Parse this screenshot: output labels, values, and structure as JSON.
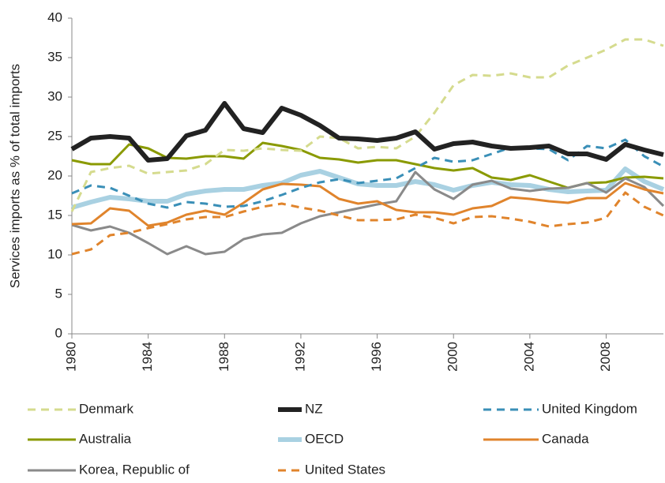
{
  "chart_data": {
    "type": "line",
    "y_label": "Services imports as % of total imports",
    "x": [
      1980,
      1981,
      1982,
      1983,
      1984,
      1985,
      1986,
      1987,
      1988,
      1989,
      1990,
      1991,
      1992,
      1993,
      1994,
      1995,
      1996,
      1997,
      1998,
      1999,
      2000,
      2001,
      2002,
      2003,
      2004,
      2005,
      2006,
      2007,
      2008,
      2009,
      2010,
      2011
    ],
    "xlim": [
      1980,
      2011
    ],
    "xticks": [
      1980,
      1984,
      1988,
      1992,
      1996,
      2000,
      2004,
      2008
    ],
    "ylim": [
      0,
      40
    ],
    "yticks": [
      0,
      5,
      10,
      15,
      20,
      25,
      30,
      35,
      40
    ],
    "series": [
      {
        "name": "Denmark",
        "color": "#d5db8e",
        "dashed": true,
        "width": 3,
        "values": [
          15.5,
          20.5,
          21,
          21.3,
          20.3,
          20.5,
          20.7,
          21.5,
          23.3,
          23.2,
          23.5,
          23.3,
          23.2,
          25,
          24.8,
          23.5,
          23.7,
          23.5,
          25,
          28,
          31.5,
          32.8,
          32.7,
          33,
          32.5,
          32.5,
          34,
          35,
          36,
          37.3,
          37.3,
          36.5
        ]
      },
      {
        "name": "NZ",
        "color": "#222222",
        "dashed": false,
        "width": 6,
        "values": [
          23.4,
          24.8,
          25,
          24.8,
          22,
          22.2,
          25.1,
          25.8,
          29.2,
          26,
          25.5,
          28.6,
          27.7,
          26.4,
          24.8,
          24.7,
          24.5,
          24.8,
          25.6,
          23.4,
          24.1,
          24.3,
          23.8,
          23.5,
          23.6,
          23.8,
          22.8,
          22.8,
          22.1,
          24,
          23.3,
          22.7
        ]
      },
      {
        "name": "United Kingdom",
        "color": "#3a8fb7",
        "dashed": true,
        "width": 3,
        "values": [
          17.8,
          18.8,
          18.5,
          17.5,
          16.5,
          16,
          16.7,
          16.5,
          16.1,
          16.2,
          16.8,
          17.6,
          18.5,
          19.2,
          19.6,
          19.1,
          19.4,
          19.7,
          21,
          22.3,
          21.8,
          22,
          22.8,
          23.6,
          23.5,
          23.4,
          22,
          23.8,
          23.5,
          24.6,
          22.5,
          21.2
        ]
      },
      {
        "name": "Australia",
        "color": "#8a9a00",
        "dashed": false,
        "width": 3,
        "values": [
          22,
          21.5,
          21.5,
          24,
          23.5,
          22.3,
          22.2,
          22.5,
          22.5,
          22.2,
          24.2,
          23.8,
          23.3,
          22.3,
          22.1,
          21.7,
          22,
          22,
          21.5,
          21,
          20.7,
          21,
          19.8,
          19.5,
          20.1,
          19.3,
          18.5,
          19.1,
          19.2,
          19.8,
          19.9,
          19.7
        ]
      },
      {
        "name": "OECD",
        "color": "#a9d1e2",
        "dashed": false,
        "width": 6,
        "values": [
          16,
          16.7,
          17.3,
          17.1,
          16.8,
          16.8,
          17.7,
          18.1,
          18.3,
          18.3,
          18.8,
          19.1,
          20.1,
          20.6,
          19.8,
          19,
          18.8,
          18.8,
          19.3,
          18.9,
          18.2,
          18.8,
          19.2,
          18.9,
          18.8,
          18.3,
          18,
          18.1,
          18.2,
          20.9,
          19.3,
          18.3
        ]
      },
      {
        "name": "Canada",
        "color": "#e0842c",
        "dashed": false,
        "width": 3,
        "values": [
          13.9,
          14,
          15.9,
          15.6,
          13.7,
          14.1,
          15.1,
          15.6,
          15.1,
          16.6,
          18.3,
          19,
          18.9,
          18.7,
          17.1,
          16.5,
          16.8,
          15.7,
          15.4,
          15.4,
          15.1,
          15.9,
          16.2,
          17.3,
          17.1,
          16.8,
          16.6,
          17.2,
          17.2,
          19.1,
          18.3,
          17.8
        ]
      },
      {
        "name": "Korea, Republic of",
        "color": "#8a8a8a",
        "dashed": false,
        "width": 3,
        "values": [
          13.8,
          13.1,
          13.6,
          12.8,
          11.5,
          10.1,
          11.1,
          10.1,
          10.4,
          12,
          12.6,
          12.8,
          14,
          14.9,
          15.4,
          15.9,
          16.4,
          16.8,
          20.5,
          18.3,
          17.1,
          18.9,
          19.4,
          18.4,
          18.1,
          18.4,
          18.5,
          19.1,
          17.9,
          19.7,
          18.6,
          16.2
        ]
      },
      {
        "name": "United States",
        "color": "#e0842c",
        "dashed": true,
        "width": 3,
        "values": [
          10.1,
          10.7,
          12.5,
          12.8,
          13.4,
          13.9,
          14.5,
          14.8,
          14.8,
          15.5,
          16.1,
          16.5,
          16,
          15.6,
          15,
          14.4,
          14.4,
          14.5,
          15.1,
          14.7,
          14,
          14.8,
          14.9,
          14.6,
          14.2,
          13.6,
          13.9,
          14.1,
          14.7,
          17.9,
          16.1,
          15
        ]
      }
    ]
  }
}
